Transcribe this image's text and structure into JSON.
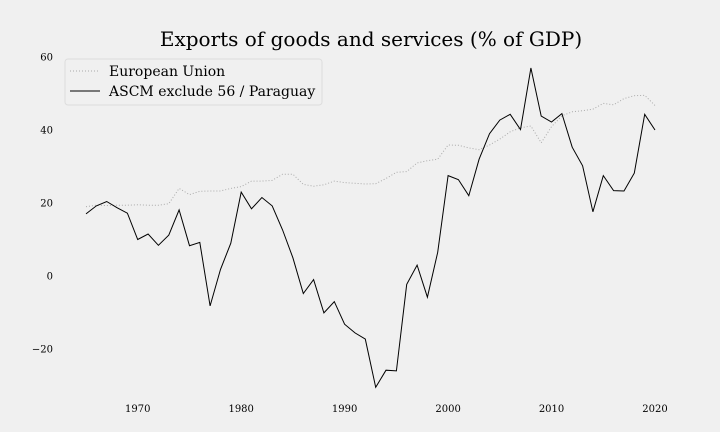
{
  "chart_data": {
    "type": "line",
    "title": "Exports of goods and services (% of GDP)",
    "xlabel": "",
    "ylabel": "",
    "xlim": [
      1962,
      2024
    ],
    "ylim": [
      -32,
      60
    ],
    "x_ticks": [
      1970,
      1980,
      1990,
      2000,
      2010,
      2020
    ],
    "y_ticks": [
      -20,
      0,
      20,
      40,
      60
    ],
    "y_tick_labels": [
      "−20",
      "0",
      "20",
      "40",
      "60"
    ],
    "grid": false,
    "legend_position": "top-left",
    "x": [
      1965,
      1966,
      1967,
      1968,
      1969,
      1970,
      1971,
      1972,
      1973,
      1974,
      1975,
      1976,
      1977,
      1978,
      1979,
      1980,
      1981,
      1982,
      1983,
      1984,
      1985,
      1986,
      1987,
      1988,
      1989,
      1990,
      1991,
      1992,
      1993,
      1994,
      1995,
      1996,
      1997,
      1998,
      1999,
      2000,
      2001,
      2002,
      2003,
      2004,
      2005,
      2006,
      2007,
      2008,
      2009,
      2010,
      2011,
      2012,
      2013,
      2014,
      2015,
      2016,
      2017,
      2018,
      2019,
      2020
    ],
    "series": [
      {
        "name": "European Union",
        "color": "#aaaaaa",
        "dash": "dotted",
        "values": [
          19.0,
          19.4,
          19.3,
          19.4,
          19.4,
          19.5,
          19.4,
          19.4,
          19.8,
          24.0,
          22.3,
          23.2,
          23.3,
          23.3,
          24.0,
          24.5,
          26.0,
          26.0,
          26.2,
          27.9,
          27.9,
          25.1,
          24.6,
          25.0,
          26.0,
          25.6,
          25.4,
          25.2,
          25.3,
          26.7,
          28.4,
          28.6,
          31.0,
          31.6,
          32.0,
          35.9,
          35.8,
          35.1,
          34.6,
          35.9,
          37.5,
          39.5,
          40.6,
          41.1,
          36.5,
          40.9,
          43.9,
          45.0,
          45.3,
          45.7,
          47.3,
          46.9,
          48.6,
          49.4,
          49.5,
          46.7
        ]
      },
      {
        "name": "ASCM exclude 56 / Paraguay",
        "color": "#000000",
        "dash": "solid",
        "values": [
          17.0,
          19.2,
          20.4,
          18.7,
          17.2,
          10.0,
          11.5,
          8.4,
          11.2,
          18.1,
          8.3,
          9.2,
          -8.2,
          1.8,
          9.0,
          23.0,
          18.4,
          21.5,
          19.2,
          12.6,
          5.0,
          -4.8,
          -1.0,
          -10.1,
          -7.0,
          -13.2,
          -15.6,
          -17.3,
          -30.5,
          -25.8,
          -26.0,
          -2.3,
          3.0,
          -5.8,
          6.5,
          27.5,
          26.4,
          22.0,
          32.0,
          39.0,
          42.7,
          44.3,
          40.1,
          57.0,
          43.8,
          42.2,
          44.5,
          35.3,
          30.2,
          17.6,
          27.5,
          23.4,
          23.3,
          28.2,
          44.3,
          40.0
        ]
      }
    ]
  }
}
